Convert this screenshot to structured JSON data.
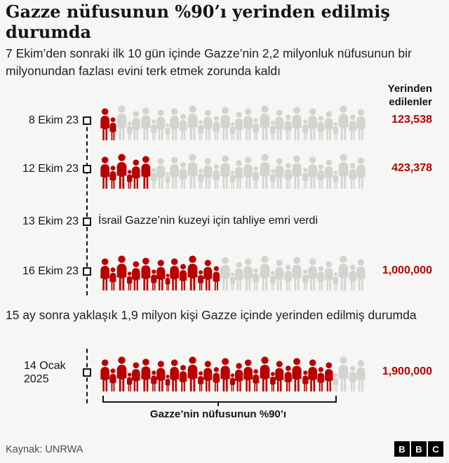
{
  "header": {
    "title": "Gazze nüfusunun %90’ı yerinden edilmiş durumda",
    "subtitle": "7 Ekim’den sonraki ilk 10 gün içinde  Gazze’nin 2,2 milyonluk nüfusunun bir milyonundan fazlası evini terk etmek zorunda kaldı"
  },
  "column_header": "Yerinden edilenler",
  "mid_text": "15 ay sonra yaklaşık 1,9 milyon kişi Gazze içinde yerinden edilmiş durumda",
  "brace_label": "Gazze’nin nüfusunun %90’ı",
  "footer": {
    "source": "Kaynak: UNRWA",
    "logo_letters": [
      "B",
      "B",
      "C"
    ]
  },
  "colors": {
    "displaced": "#b80000",
    "population": "#d3d3d0",
    "value_text": "#b80000"
  },
  "chart_data": {
    "type": "pictogram",
    "title": "Gazze nüfusunun %90’ı yerinden edilmiş durumda",
    "legend": "Yerinden edilenler",
    "total_population": 2200000,
    "unit": "kişi",
    "rows": [
      {
        "date": "8 Ekim 23",
        "displaced": 123538,
        "value_label": "123,538"
      },
      {
        "date": "12 Ekim 23",
        "displaced": 423378,
        "value_label": "423,378"
      },
      {
        "date": "13 Ekim 23",
        "event": "İsrail Gazze’nin kuzeyi için tahliye emri verdi"
      },
      {
        "date": "16 Ekim 23",
        "displaced": 1000000,
        "value_label": "1,000,000"
      },
      {
        "date": "14 Ocak 2025",
        "displaced": 1900000,
        "value_label": "1,900,000",
        "share_of_population": 0.9
      }
    ]
  }
}
